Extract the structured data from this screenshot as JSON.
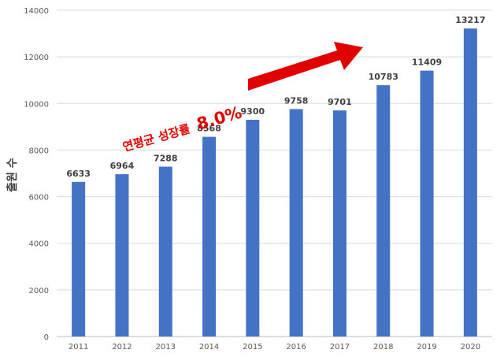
{
  "chart_data": {
    "type": "bar",
    "title": "",
    "xlabel": "",
    "ylabel": "출원 수",
    "ylim": [
      0,
      14000
    ],
    "yticks": [
      0,
      2000,
      4000,
      6000,
      8000,
      10000,
      12000,
      14000
    ],
    "grid": true,
    "legend": "none",
    "categories": [
      "2011",
      "2012",
      "2013",
      "2014",
      "2015",
      "2016",
      "2017",
      "2018",
      "2019",
      "2020"
    ],
    "values": [
      6633,
      6964,
      7288,
      8568,
      9300,
      9758,
      9701,
      10783,
      11409,
      13217
    ],
    "bar_color": "#4472C4",
    "annotation": {
      "text": "연평균 성장률",
      "value": "8.0%",
      "color": "#E00000",
      "arrow_icon": "red-arrow-icon"
    }
  }
}
